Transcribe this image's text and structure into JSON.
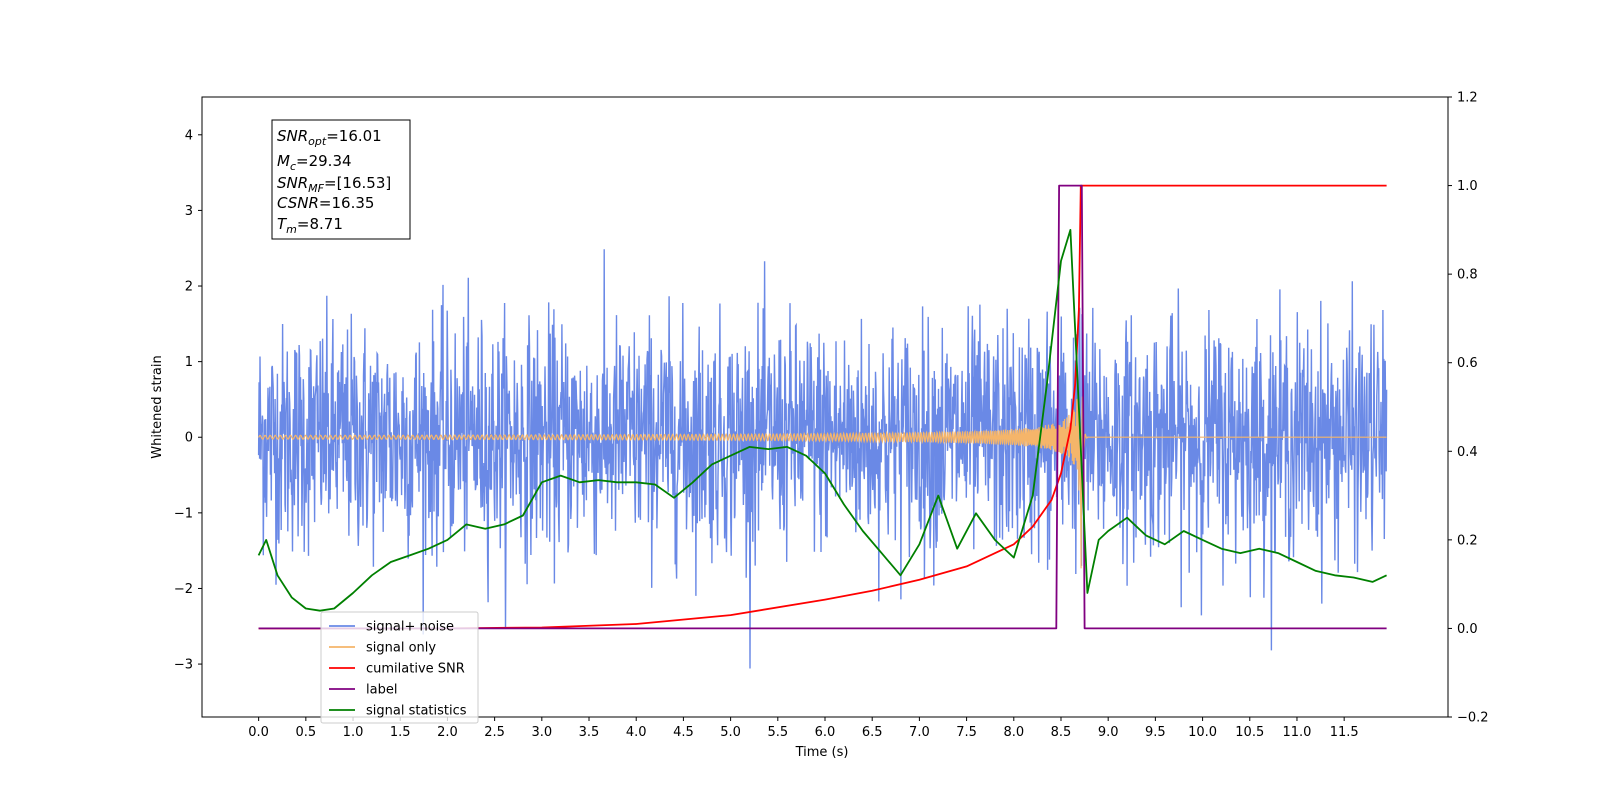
{
  "chart_data": {
    "type": "line",
    "title": "",
    "xlabel": "Time (s)",
    "ylabel": "Whitened strain",
    "xlim": [
      -0.6,
      12.6
    ],
    "ylim": [
      -3.7,
      4.5
    ],
    "y2lim": [
      -0.2,
      1.2
    ],
    "x_ticks": [
      "0.0",
      "0.5",
      "1.0",
      "1.5",
      "2.0",
      "2.5",
      "3.0",
      "3.5",
      "4.0",
      "4.5",
      "5.0",
      "5.5",
      "6.0",
      "6.5",
      "7.0",
      "7.5",
      "8.0",
      "8.5",
      "9.0",
      "9.5",
      "10.0",
      "10.5",
      "11.0",
      "11.5"
    ],
    "y_ticks": [
      "4",
      "3",
      "2",
      "1",
      "0",
      "−1",
      "−2",
      "−3"
    ],
    "y2_ticks": [
      "1.2",
      "1.0",
      "0.8",
      "0.6",
      "0.4",
      "0.2",
      "0.0",
      "−0.2"
    ],
    "grid": false,
    "legend_position": "lower-left",
    "stats_box": {
      "snr_opt_base": "SNR",
      "snr_opt_sub": "opt",
      "snr_opt_val": "=16.01",
      "mc_base": "M",
      "mc_sub": "c",
      "mc_val": "=29.34",
      "snr_mf_base": "SNR",
      "snr_mf_sub": "MF",
      "snr_mf_val": "=[16.53]",
      "csnr_base": "CSNR",
      "csnr_val": "=16.35",
      "tm_base": "T",
      "tm_sub": "m",
      "tm_val": "=8.71"
    },
    "series": [
      {
        "name": "signal+ noise",
        "axis": "left",
        "color": "#6a89e6",
        "noise_sigma": 0.75,
        "merger_time": 8.71
      },
      {
        "name": "signal only",
        "axis": "left",
        "color": "#f5b56a",
        "merger_time": 8.71,
        "peak_amplitude": 2.5
      },
      {
        "name": "cumilative SNR",
        "axis": "right",
        "color": "#ff0000",
        "x": [
          0.0,
          1.0,
          2.0,
          3.0,
          4.0,
          5.0,
          6.0,
          6.5,
          7.0,
          7.5,
          8.0,
          8.2,
          8.4,
          8.5,
          8.6,
          8.65,
          8.69,
          8.71,
          11.95
        ],
        "y": [
          0.0,
          0.0,
          0.0,
          0.002,
          0.01,
          0.03,
          0.065,
          0.085,
          0.11,
          0.14,
          0.19,
          0.23,
          0.29,
          0.35,
          0.45,
          0.55,
          0.72,
          1.0,
          1.0
        ]
      },
      {
        "name": "label",
        "axis": "right",
        "color": "#800080",
        "x": [
          0.0,
          8.45,
          8.48,
          8.72,
          8.75,
          11.95
        ],
        "y": [
          0.0,
          0.0,
          1.0,
          1.0,
          0.0,
          0.0
        ]
      },
      {
        "name": "signal statistics",
        "axis": "right",
        "color": "#008000",
        "x": [
          0.0,
          0.08,
          0.2,
          0.35,
          0.5,
          0.65,
          0.8,
          1.0,
          1.2,
          1.4,
          1.6,
          1.8,
          2.0,
          2.2,
          2.4,
          2.6,
          2.8,
          3.0,
          3.2,
          3.4,
          3.6,
          3.8,
          4.0,
          4.2,
          4.4,
          4.6,
          4.8,
          5.0,
          5.2,
          5.4,
          5.6,
          5.8,
          6.0,
          6.2,
          6.4,
          6.6,
          6.8,
          7.0,
          7.2,
          7.4,
          7.6,
          7.8,
          8.0,
          8.2,
          8.35,
          8.5,
          8.6,
          8.7,
          8.78,
          8.9,
          9.0,
          9.2,
          9.4,
          9.6,
          9.8,
          10.0,
          10.2,
          10.4,
          10.6,
          10.8,
          11.0,
          11.2,
          11.4,
          11.6,
          11.8,
          11.95
        ],
        "y": [
          0.165,
          0.2,
          0.12,
          0.07,
          0.045,
          0.04,
          0.045,
          0.08,
          0.12,
          0.15,
          0.165,
          0.18,
          0.2,
          0.235,
          0.225,
          0.235,
          0.255,
          0.33,
          0.345,
          0.33,
          0.335,
          0.33,
          0.33,
          0.325,
          0.295,
          0.33,
          0.37,
          0.39,
          0.41,
          0.405,
          0.41,
          0.39,
          0.35,
          0.28,
          0.22,
          0.17,
          0.12,
          0.19,
          0.3,
          0.18,
          0.26,
          0.2,
          0.16,
          0.3,
          0.55,
          0.83,
          0.9,
          0.45,
          0.08,
          0.2,
          0.22,
          0.25,
          0.21,
          0.19,
          0.22,
          0.2,
          0.18,
          0.17,
          0.18,
          0.17,
          0.15,
          0.13,
          0.12,
          0.115,
          0.105,
          0.12
        ]
      }
    ]
  }
}
